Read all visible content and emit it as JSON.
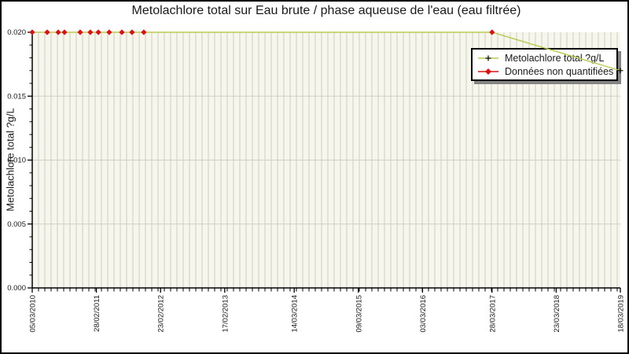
{
  "title": "Metolachlore total sur Eau brute / phase aqueuse de l'eau (eau filtrée)",
  "y_axis_label": "Metolachlore total ?g/L",
  "legend": {
    "position": "top-right",
    "items": [
      {
        "label": "Metolachlore total ?g/L",
        "marker": "black-plus",
        "line_color": "#b9cb4e",
        "marker_color": "#111111"
      },
      {
        "label": "Données non quantifiées",
        "marker": "red-diamond",
        "line_color": "#dd1111",
        "marker_color": "#dd1111"
      }
    ]
  },
  "chart_data": {
    "type": "line",
    "title": "Metolachlore total sur Eau brute / phase aqueuse de l'eau (eau filtrée)",
    "xlabel": "",
    "ylabel": "Metolachlore total ?g/L",
    "ylim": [
      0.0,
      0.02
    ],
    "y_ticks": [
      0.0,
      0.005,
      0.01,
      0.015,
      0.02
    ],
    "y_tick_labels": [
      "0.000",
      "0.005",
      "0.010",
      "0.015",
      "0.020"
    ],
    "y_minor_tick_step": 0.001,
    "x_tick_labels": [
      "05/03/2010",
      "28/02/2011",
      "23/02/2012",
      "17/02/2013",
      "14/03/2014",
      "09/03/2015",
      "03/03/2016",
      "28/03/2017",
      "23/03/2018",
      "18/03/2019"
    ],
    "grid": "on",
    "legend_position": "top-right",
    "series": [
      {
        "name": "Metolachlore total ?g/L",
        "color": "#b9cb4e",
        "points": [
          {
            "date": "05/03/2010",
            "value": 0.02,
            "quantified": false
          },
          {
            "date": "28/05/2010",
            "value": 0.02,
            "quantified": false
          },
          {
            "date": "29/07/2010",
            "value": 0.02,
            "quantified": false
          },
          {
            "date": "02/09/2010",
            "value": 0.02,
            "quantified": false
          },
          {
            "date": "29/11/2010",
            "value": 0.02,
            "quantified": false
          },
          {
            "date": "25/01/2011",
            "value": 0.02,
            "quantified": false
          },
          {
            "date": "11/03/2011",
            "value": 0.02,
            "quantified": false
          },
          {
            "date": "11/05/2011",
            "value": 0.02,
            "quantified": false
          },
          {
            "date": "21/07/2011",
            "value": 0.02,
            "quantified": false
          },
          {
            "date": "16/09/2011",
            "value": 0.02,
            "quantified": false
          },
          {
            "date": "21/11/2011",
            "value": 0.02,
            "quantified": false
          },
          {
            "date": "28/03/2017",
            "value": 0.02,
            "quantified": false
          },
          {
            "date": "18/03/2019",
            "value": 0.017,
            "quantified": true
          }
        ]
      }
    ],
    "colors": {
      "plot_bg": "#f6f6ec",
      "grid": "#cfcfc5",
      "axis": "#000000",
      "line": "#b9cb4e",
      "non_quantified_marker": "#dd1111",
      "quantified_marker": "#111111",
      "legend_shadow": "#848484"
    }
  }
}
